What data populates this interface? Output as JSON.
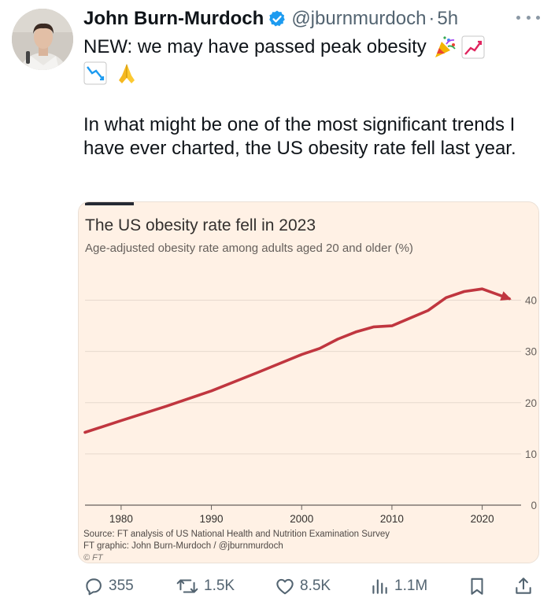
{
  "tweet": {
    "author_name": "John Burn-Murdoch",
    "handle": "@jburnmurdoch",
    "separator": "·",
    "time": "5h",
    "headline": "NEW: we may have passed peak obesity",
    "headline_icons": [
      "party-popper-icon",
      "chart-increasing-icon",
      "chart-decreasing-icon",
      "folded-hands-icon"
    ],
    "body": "In what might be one of the most significant trends I have ever charted, the US obesity rate fell last year."
  },
  "chart_data": {
    "type": "line",
    "title": "The US obesity rate fell in 2023",
    "subtitle": "Age-adjusted obesity rate among adults aged 20 and older (%)",
    "x": [
      1976,
      1980,
      1985,
      1990,
      1995,
      2000,
      2002,
      2004,
      2006,
      2008,
      2010,
      2012,
      2014,
      2016,
      2018,
      2020,
      2023
    ],
    "series": [
      {
        "values": [
          14.2,
          16.5,
          19.3,
          22.3,
          25.8,
          29.4,
          30.6,
          32.4,
          33.8,
          34.8,
          35.0,
          36.5,
          38.0,
          40.5,
          41.7,
          42.2,
          40.3
        ],
        "color": "#c0363f"
      }
    ],
    "xlim": [
      1976,
      2023
    ],
    "ylim": [
      0,
      45
    ],
    "x_ticks": [
      1980,
      1990,
      2000,
      2010,
      2020
    ],
    "x_tick_labels": [
      "1980",
      "1990",
      "2000",
      "2010",
      "2020"
    ],
    "y_ticks": [
      0,
      10,
      20,
      30,
      40
    ],
    "y_tick_labels": [
      "0",
      "10",
      "20",
      "30",
      "40"
    ],
    "y_axis_side": "right",
    "grid": true,
    "source": "Source: FT analysis of US National Health and Nutrition Examination Survey",
    "credit": "FT graphic: John Burn-Murdoch / @jburnmurdoch",
    "copyright": "© FT",
    "background": "#fff1e5"
  },
  "actions": {
    "replies": "355",
    "reposts": "1.5K",
    "likes": "8.5K",
    "views": "1.1M"
  },
  "colors": {
    "text_primary": "#0f1419",
    "text_secondary": "#536471",
    "verified_blue": "#1d9bf0",
    "ft_red": "#c0363f"
  }
}
